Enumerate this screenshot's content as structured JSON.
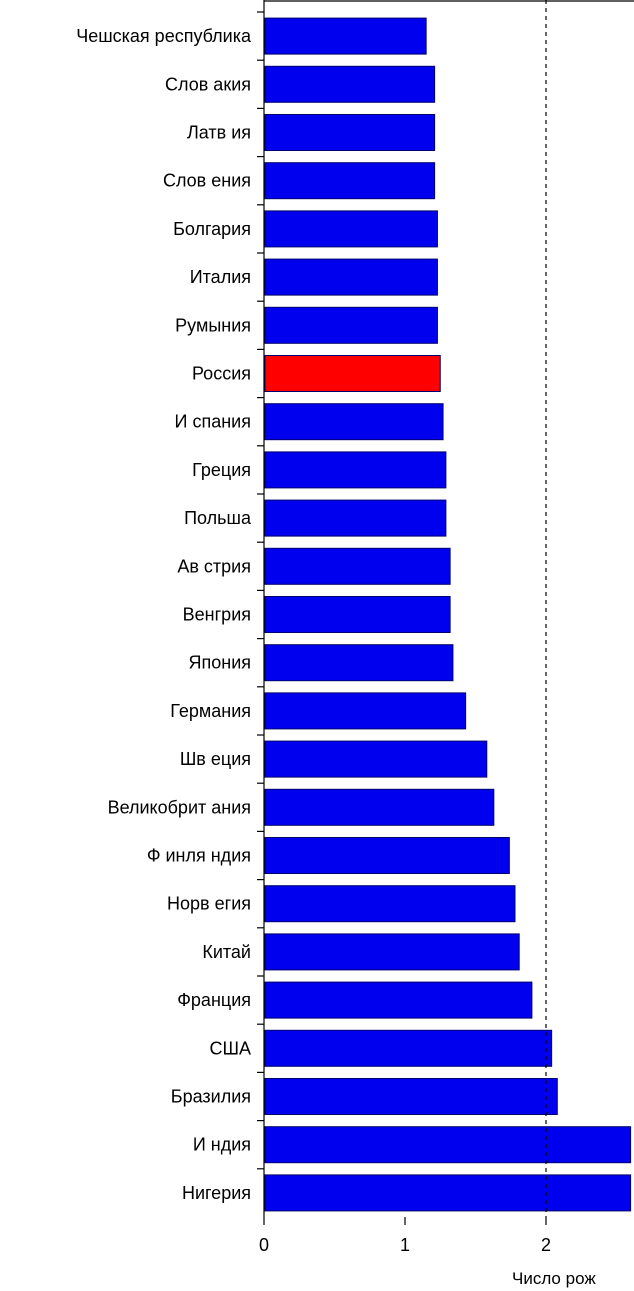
{
  "chart_data": {
    "type": "bar",
    "orientation": "horizontal",
    "title": "",
    "xlabel": "Число рож",
    "ylabel": "",
    "xlim": [
      0,
      2.6
    ],
    "x_ticks": [
      0,
      1,
      2
    ],
    "reference_line": {
      "x": 2,
      "style": "dashed"
    },
    "categories": [
      "Чешская республика",
      "Слов акия",
      "Латв ия",
      "Слов ения",
      "Болгария",
      "Италия",
      "Румыния",
      "Россия",
      "И спания",
      "Греция",
      "Польша",
      "Ав стрия",
      "Венгрия",
      "Япония",
      "Германия",
      "Шв еция",
      "Великобрит ания",
      "Ф инля ндия",
      "Норв егия",
      "Китай",
      "Франция",
      "США",
      "Бразилия",
      "И ндия",
      "Нигерия"
    ],
    "values": [
      1.15,
      1.21,
      1.21,
      1.21,
      1.23,
      1.23,
      1.23,
      1.25,
      1.27,
      1.29,
      1.29,
      1.32,
      1.32,
      1.34,
      1.43,
      1.58,
      1.63,
      1.74,
      1.78,
      1.81,
      1.9,
      2.04,
      2.08,
      2.6,
      2.6
    ],
    "highlight": "Россия",
    "colors": {
      "bar": "#0000ee",
      "highlight": "#ff0000",
      "bar_edge": "#00006e"
    },
    "grid": false,
    "legend": "none"
  }
}
